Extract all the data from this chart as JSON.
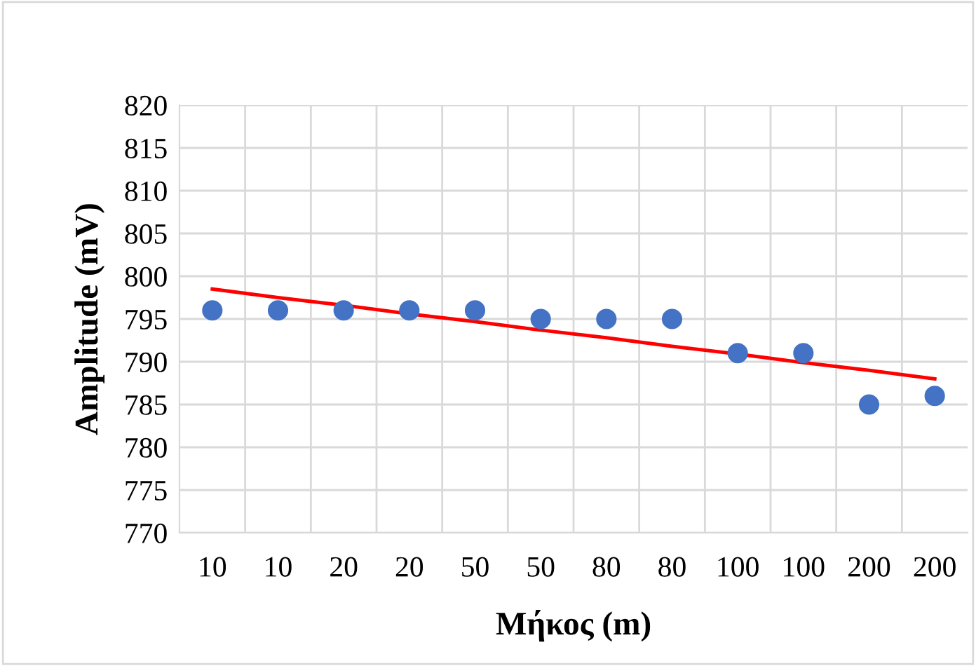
{
  "chart_data": {
    "type": "scatter",
    "xlabel": "Μήκος (m)",
    "ylabel": "Amplitude (mV)",
    "categories": [
      "10",
      "10",
      "20",
      "20",
      "50",
      "50",
      "80",
      "80",
      "100",
      "100",
      "200",
      "200"
    ],
    "ylim": [
      770,
      820
    ],
    "yticks": [
      770,
      775,
      780,
      785,
      790,
      795,
      800,
      805,
      810,
      815,
      820
    ],
    "grid": true,
    "marker": "circle",
    "series": [
      {
        "color": "#4472c4",
        "values": [
          796,
          796,
          796,
          796,
          796,
          795,
          795,
          795,
          791,
          791,
          785,
          786
        ]
      },
      {
        "type": "line",
        "color": "#ff0000",
        "marker": "none",
        "line_style": "solid",
        "values": [
          798.5,
          797.5,
          796.6,
          795.6,
          794.7,
          793.7,
          792.8,
          791.8,
          790.9,
          789.9,
          789.0,
          788.0
        ]
      }
    ]
  }
}
